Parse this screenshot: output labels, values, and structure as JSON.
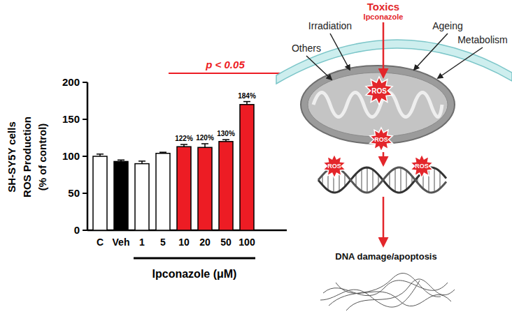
{
  "chart_data": {
    "type": "bar",
    "categories": [
      "C",
      "Veh",
      "1",
      "5",
      "10",
      "20",
      "50",
      "100"
    ],
    "values": [
      100,
      93,
      90,
      104,
      113,
      112,
      120,
      170
    ],
    "errors": [
      3,
      2,
      3.5,
      1.5,
      3,
      5,
      2.5,
      4
    ],
    "colors": [
      "#ffffff",
      "#000000",
      "#ffffff",
      "#ffffff",
      "#ed1c24",
      "#ed1c24",
      "#ed1c24",
      "#ed1c24"
    ],
    "ylabel": [
      "SH-SY5Y cells",
      "ROS Production",
      "(% of control)"
    ],
    "xlabel": "Ipconazole (μM)",
    "ylim": [
      0,
      200
    ],
    "yticks": [
      0,
      50,
      100,
      150,
      200
    ],
    "grid": false,
    "annotations": [
      {
        "text": "p < 0.05",
        "span": [
          "10",
          "100"
        ],
        "color": "#ed1c24"
      },
      {
        "text": "122%",
        "category": "10"
      },
      {
        "text": "120%",
        "category": "20"
      },
      {
        "text": "130%",
        "category": "50"
      },
      {
        "text": "184%",
        "category": "100"
      }
    ]
  },
  "diagram": {
    "toxics": "Toxics",
    "agent": "Ipconazole",
    "sources": [
      "Irradiation",
      "Ageing",
      "Others",
      "Metabolism"
    ],
    "ros": "ROS",
    "outcome": "DNA damage/apoptosis"
  }
}
